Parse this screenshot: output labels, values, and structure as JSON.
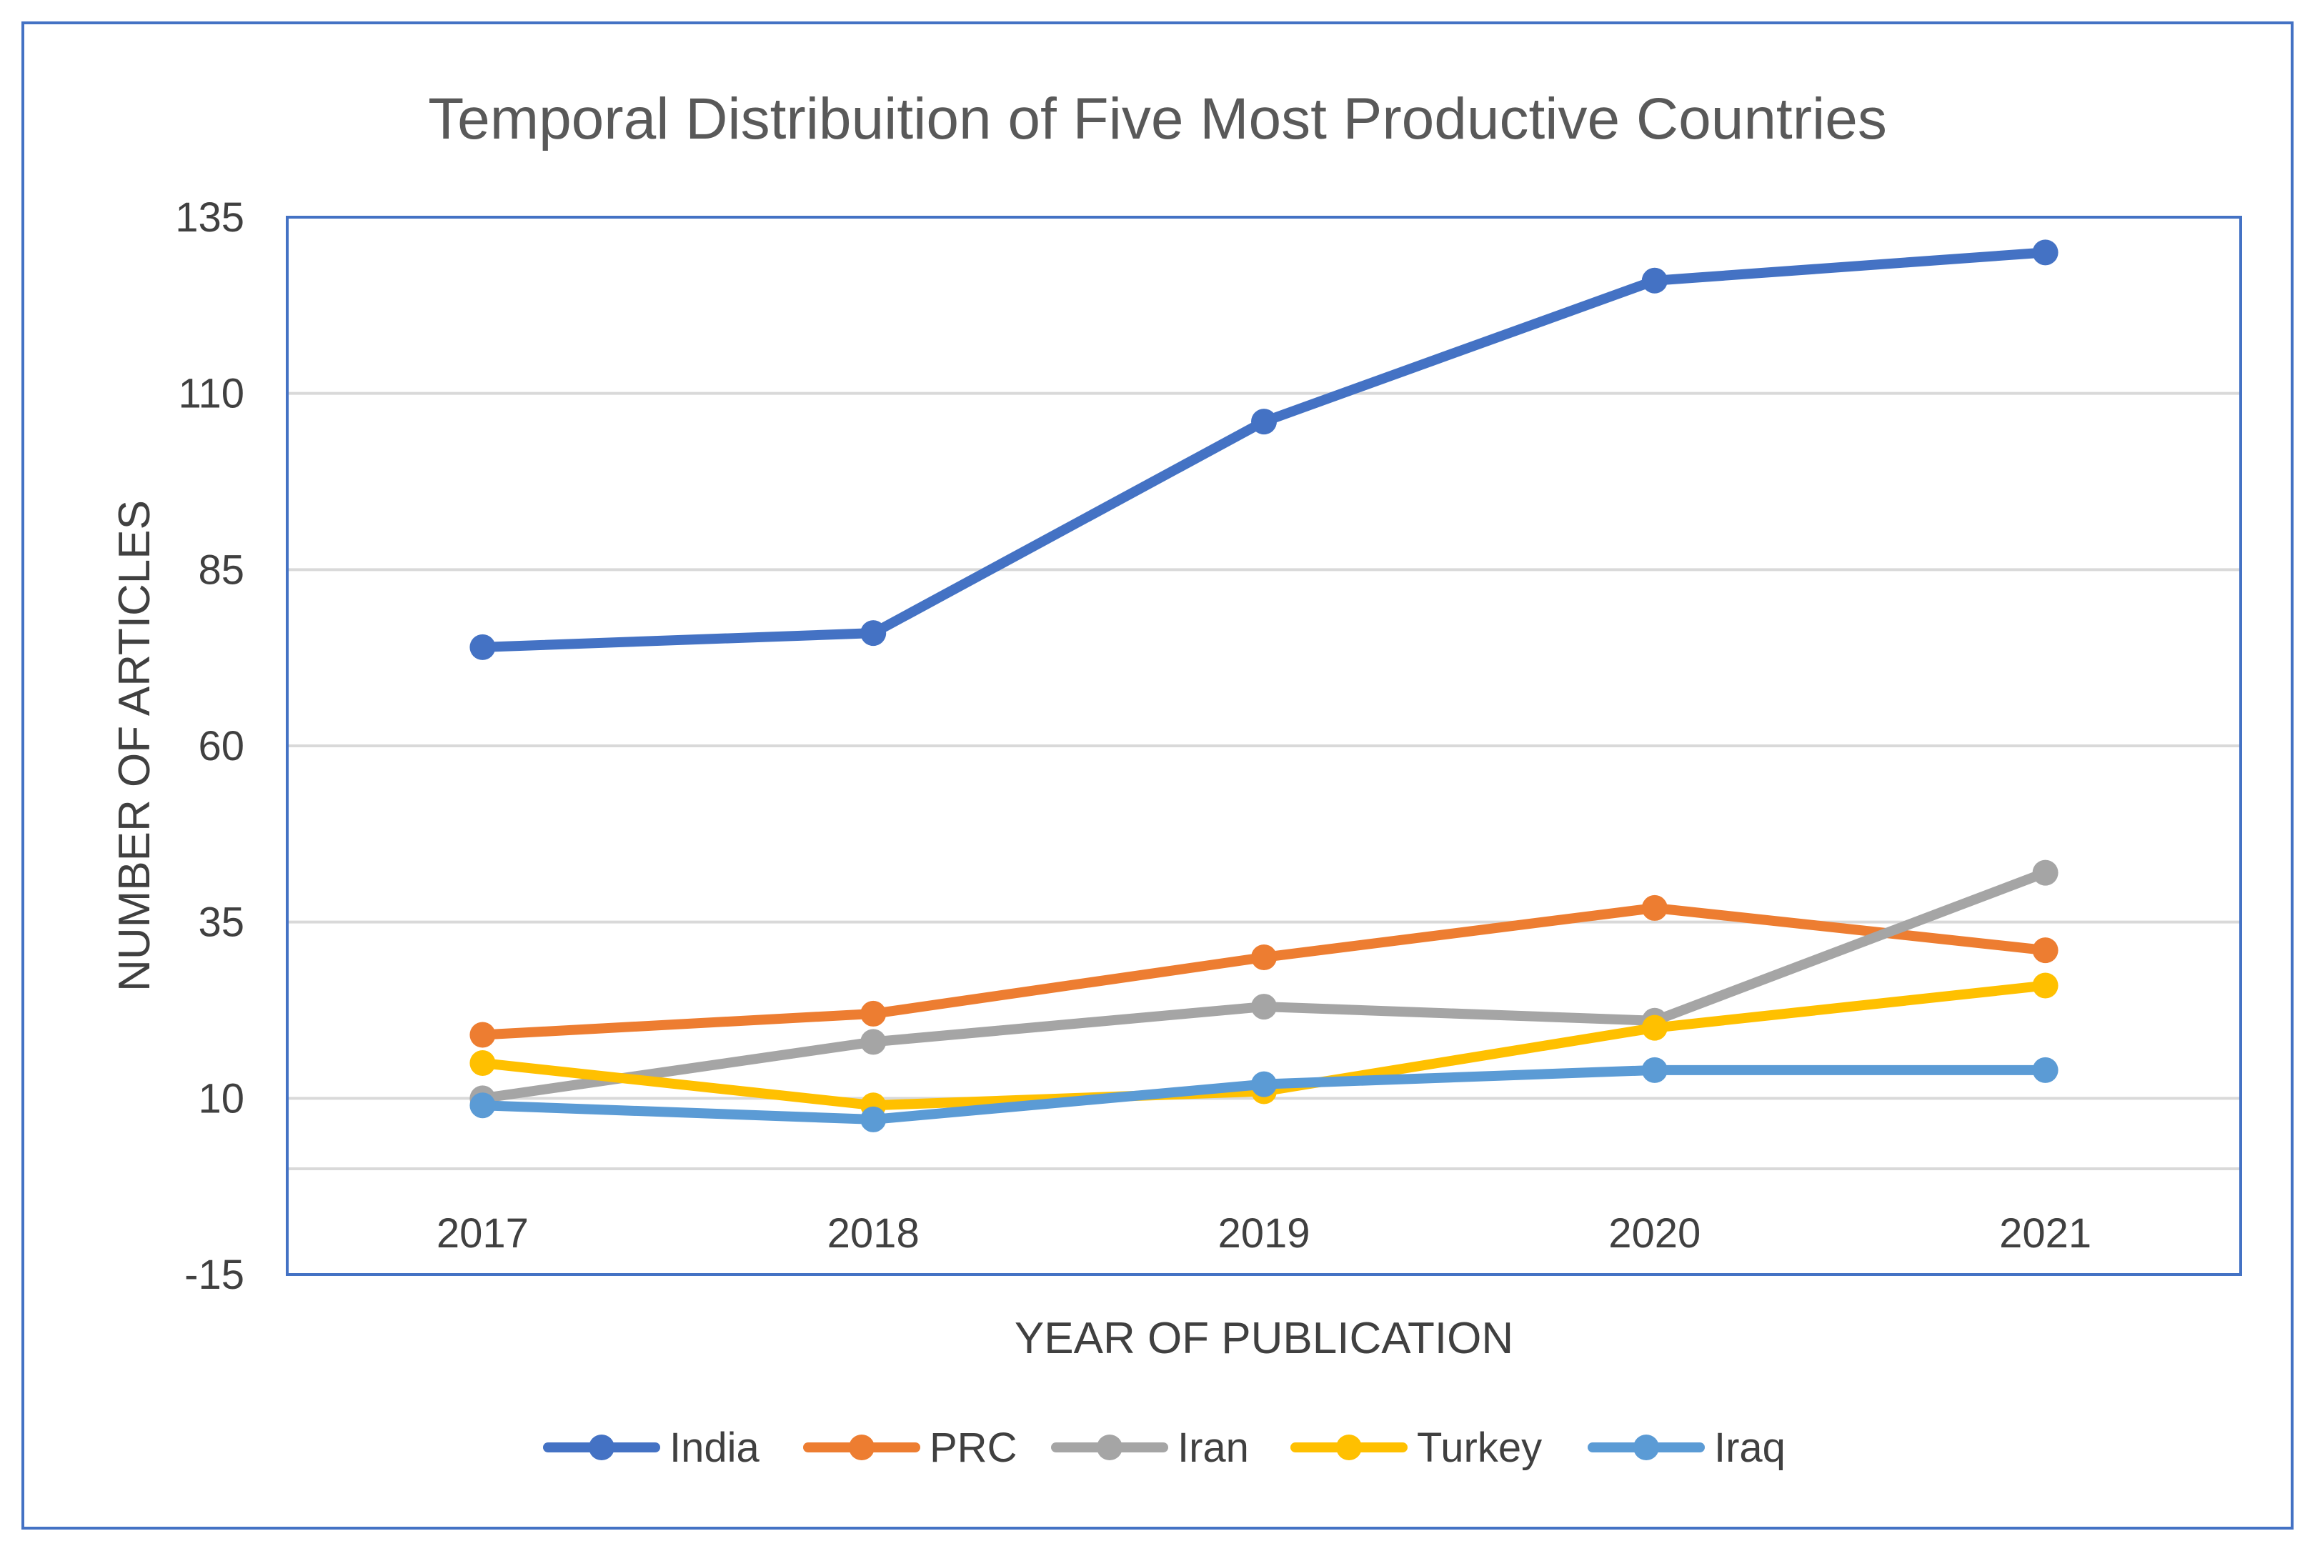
{
  "chart_data": {
    "type": "line",
    "title": "Temporal Distribuition of Five Most Productive Countries",
    "xlabel": "YEAR OF PUBLICATION",
    "ylabel": "NUMBER OF ARTICLES",
    "categories": [
      "2017",
      "2018",
      "2019",
      "2020",
      "2021"
    ],
    "ylim": [
      -15,
      135
    ],
    "yticks": [
      -15,
      10,
      35,
      60,
      85,
      110,
      135
    ],
    "ytick_labels": [
      "-15",
      "10",
      "35",
      "60",
      "85",
      "110",
      "135"
    ],
    "grid": true,
    "legend_position": "bottom",
    "series": [
      {
        "name": "India",
        "color": "#4472c4",
        "values": [
          74,
          76,
          106,
          126,
          130
        ]
      },
      {
        "name": "PRC",
        "color": "#ed7d31",
        "values": [
          19,
          22,
          30,
          37,
          31
        ]
      },
      {
        "name": "Iran",
        "color": "#a5a5a5",
        "values": [
          10,
          18,
          23,
          21,
          42
        ]
      },
      {
        "name": "Turkey",
        "color": "#ffc000",
        "values": [
          15,
          9,
          11,
          20,
          26
        ]
      },
      {
        "name": "Iraq",
        "color": "#5b9bd5",
        "values": [
          9,
          7,
          12,
          14,
          14
        ]
      }
    ]
  }
}
